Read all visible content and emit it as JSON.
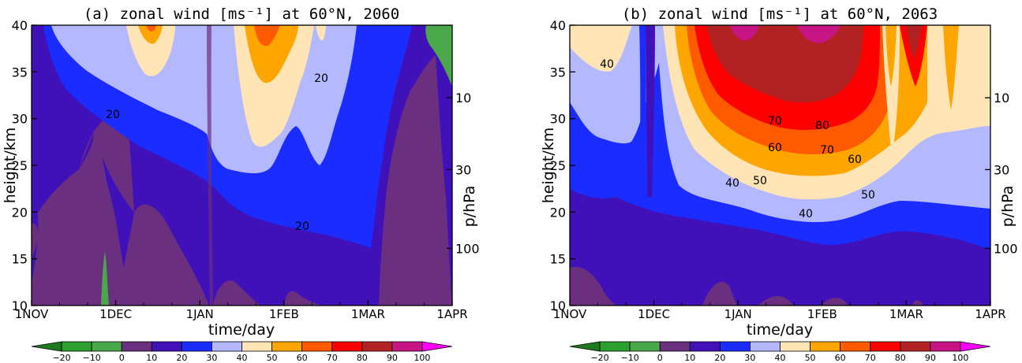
{
  "chart_data": [
    {
      "type": "heatmap",
      "panel": "a",
      "title": "(a) zonal wind [ms⁻¹] at 60°N, 2060",
      "xlabel": "time/day",
      "ylabel": "height/km",
      "y2label": "p/hPa",
      "x_ticks": [
        "1NOV",
        "1DEC",
        "1JAN",
        "1FEB",
        "1MAR",
        "1APR"
      ],
      "y_ticks": [
        10,
        15,
        20,
        25,
        30,
        35,
        40
      ],
      "y2_ticks": [
        10,
        30,
        100
      ],
      "ylim": [
        10,
        40
      ],
      "contour_labels": [
        "20",
        "20",
        "20"
      ],
      "colorbar": {
        "levels": [
          -20,
          -10,
          0,
          10,
          20,
          30,
          40,
          50,
          60,
          70,
          80,
          90,
          100
        ],
        "labels": [
          "−20",
          "−10",
          "0",
          "10",
          "20",
          "30",
          "40",
          "50",
          "60",
          "70",
          "80",
          "90",
          "100"
        ],
        "colors": [
          "#1f7a1f",
          "#2ca02c",
          "#4aa84a",
          "#6b2f80",
          "#4010b8",
          "#1a2cff",
          "#b4b8ff",
          "#ffe4b5",
          "#ffa500",
          "#ff5a00",
          "#ff0000",
          "#b22222",
          "#c71585",
          "#ff00ff"
        ]
      }
    },
    {
      "type": "heatmap",
      "panel": "b",
      "title": "(b) zonal wind [ms⁻¹] at 60°N, 2063",
      "xlabel": "time/day",
      "ylabel": "height/km",
      "y2label": "p/hPa",
      "x_ticks": [
        "1NOV",
        "1DEC",
        "1JAN",
        "1FEB",
        "1MAR",
        "1APR"
      ],
      "y_ticks": [
        10,
        15,
        20,
        25,
        30,
        35,
        40
      ],
      "y2_ticks": [
        10,
        30,
        100
      ],
      "ylim": [
        10,
        40
      ],
      "contour_labels": [
        "40",
        "70",
        "80",
        "60",
        "70",
        "60",
        "40",
        "50",
        "50",
        "40"
      ],
      "colorbar": {
        "levels": [
          -20,
          -10,
          0,
          10,
          20,
          30,
          40,
          50,
          60,
          70,
          80,
          90,
          100
        ],
        "labels": [
          "−20",
          "−10",
          "0",
          "10",
          "20",
          "30",
          "40",
          "50",
          "60",
          "70",
          "80",
          "90",
          "100"
        ],
        "colors": [
          "#1f7a1f",
          "#2ca02c",
          "#4aa84a",
          "#6b2f80",
          "#4010b8",
          "#1a2cff",
          "#b4b8ff",
          "#ffe4b5",
          "#ffa500",
          "#ff5a00",
          "#ff0000",
          "#b22222",
          "#c71585",
          "#ff00ff"
        ]
      }
    }
  ]
}
